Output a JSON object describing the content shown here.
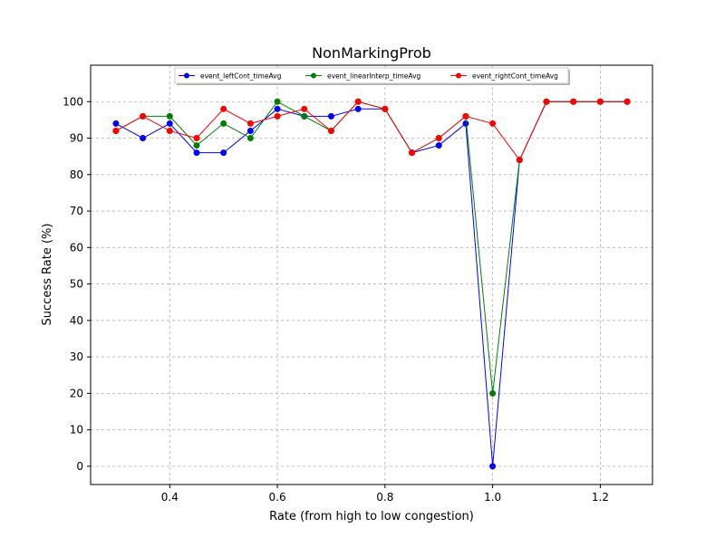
{
  "chart_data": {
    "type": "line",
    "title": "NonMarkingProb",
    "xlabel": "Rate (from high to low congestion)",
    "ylabel": "Success Rate (%)",
    "xlim": [
      0.253,
      1.297
    ],
    "ylim": [
      -5,
      110
    ],
    "x_ticks": [
      0.4,
      0.6,
      0.8,
      1.0,
      1.2
    ],
    "x_tick_labels": [
      "0.4",
      "0.6",
      "0.8",
      "1.0",
      "1.2"
    ],
    "y_ticks": [
      0,
      10,
      20,
      30,
      40,
      50,
      60,
      70,
      80,
      90,
      100
    ],
    "y_tick_labels": [
      "0",
      "10",
      "20",
      "30",
      "40",
      "50",
      "60",
      "70",
      "80",
      "90",
      "100"
    ],
    "grid": true,
    "legend_position": "top-center",
    "x": [
      0.3,
      0.35,
      0.4,
      0.45,
      0.5,
      0.55,
      0.6,
      0.65,
      0.7,
      0.75,
      0.8,
      0.85,
      0.9,
      0.95,
      1.0,
      1.05,
      1.1,
      1.15,
      1.2,
      1.25
    ],
    "series": [
      {
        "name": "event_leftCont_timeAvg",
        "color": "#0000ff",
        "values": [
          94,
          90,
          94,
          86,
          86,
          92,
          98,
          96,
          96,
          98,
          98,
          86,
          88,
          94,
          0,
          84,
          100,
          100,
          100,
          100
        ]
      },
      {
        "name": "event_linearInterp_timeAvg",
        "color": "#008000",
        "values": [
          92,
          96,
          96,
          88,
          94,
          90,
          100,
          96,
          92,
          100,
          98,
          86,
          90,
          96,
          20,
          84,
          100,
          100,
          100,
          100
        ]
      },
      {
        "name": "event_rightCont_timeAvg",
        "color": "#ff0000",
        "values": [
          92,
          96,
          92,
          90,
          98,
          94,
          96,
          98,
          92,
          100,
          98,
          86,
          90,
          96,
          94,
          84,
          100,
          100,
          100,
          100
        ]
      }
    ]
  }
}
